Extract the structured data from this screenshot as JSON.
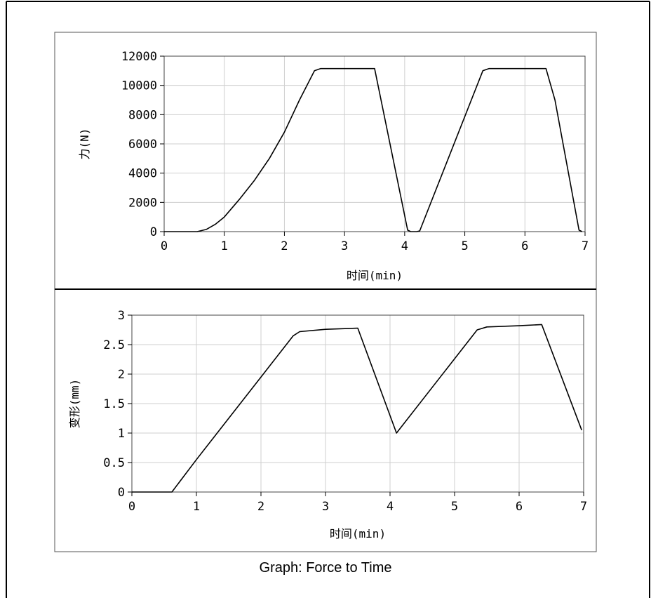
{
  "caption": "Graph: Force to Time",
  "chart_data": [
    {
      "type": "line",
      "xlabel": "时间(min)",
      "ylabel": "力(N)",
      "xlim": [
        0,
        7
      ],
      "ylim": [
        0,
        12000
      ],
      "xticks": [
        "0",
        "1",
        "2",
        "3",
        "4",
        "5",
        "6",
        "7"
      ],
      "yticks": [
        "0",
        "2000",
        "4000",
        "6000",
        "8000",
        "10000",
        "12000"
      ],
      "grid": true,
      "series": [
        {
          "x": [
            0,
            0.55,
            0.7,
            0.85,
            1.0,
            1.25,
            1.5,
            1.75,
            2.0,
            2.25,
            2.5,
            2.6,
            3.0,
            3.5,
            4.05,
            4.1,
            4.2,
            4.25,
            5.3,
            5.4,
            6.0,
            6.35,
            6.5,
            6.9,
            6.95
          ],
          "y": [
            0,
            0,
            150,
            500,
            1000,
            2200,
            3500,
            5000,
            6800,
            9000,
            11000,
            11150,
            11150,
            11150,
            100,
            0,
            0,
            50,
            11000,
            11150,
            11150,
            11150,
            9000,
            100,
            0
          ]
        }
      ]
    },
    {
      "type": "line",
      "xlabel": "时间(min)",
      "ylabel": "变形(mm)",
      "xlim": [
        0,
        7
      ],
      "ylim": [
        0,
        3
      ],
      "xticks": [
        "0",
        "1",
        "2",
        "3",
        "4",
        "5",
        "6",
        "7"
      ],
      "yticks": [
        "0",
        "0.5",
        "1",
        "1.5",
        "2",
        "2.5",
        "3"
      ],
      "grid": true,
      "series": [
        {
          "x": [
            0,
            0.62,
            1.0,
            1.5,
            2.0,
            2.5,
            2.6,
            3.0,
            3.5,
            4.1,
            5.35,
            5.5,
            6.0,
            6.35,
            6.97
          ],
          "y": [
            0,
            0,
            0.55,
            1.25,
            1.95,
            2.65,
            2.72,
            2.76,
            2.78,
            1.0,
            2.75,
            2.8,
            2.82,
            2.84,
            1.05
          ]
        }
      ]
    }
  ]
}
